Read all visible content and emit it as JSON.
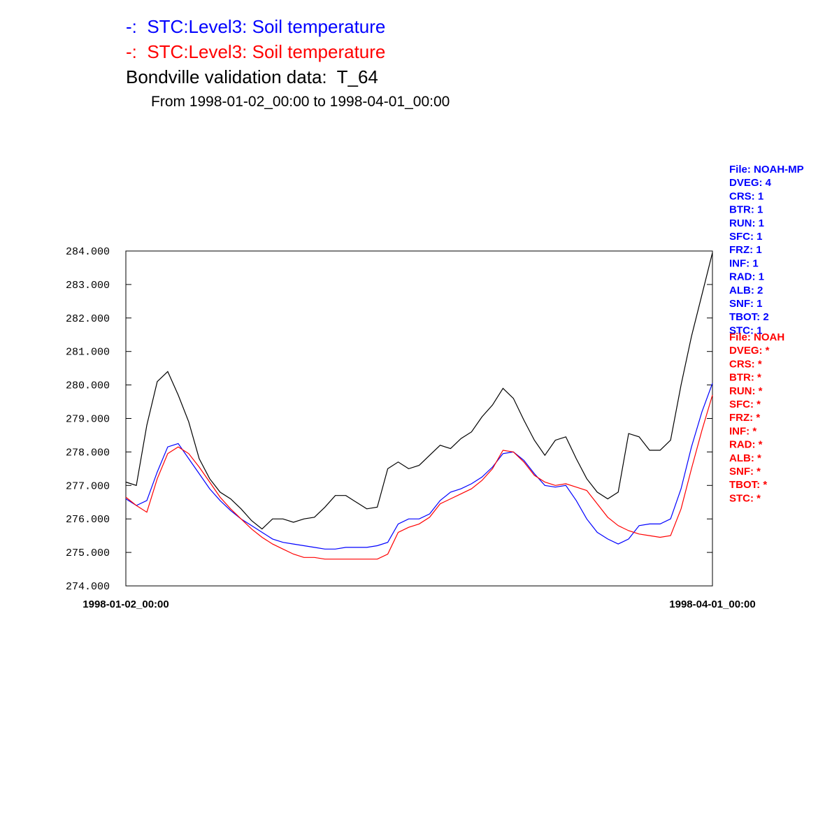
{
  "chart_data": {
    "type": "line",
    "subtitle": "From 1998-01-02_00:00 to 1998-04-01_00:00",
    "categories": [
      "1998-01-02_00:00",
      null,
      null,
      null,
      null,
      null,
      null,
      null,
      null,
      null,
      null,
      null,
      null,
      null,
      null,
      null,
      null,
      null,
      null,
      null,
      null,
      null,
      null,
      null,
      null,
      null,
      null,
      null,
      null,
      null,
      null,
      null,
      null,
      null,
      null,
      null,
      null,
      null,
      null,
      null,
      null,
      null,
      null,
      null,
      null,
      null,
      null,
      null,
      null,
      null,
      null,
      null,
      null,
      null,
      null,
      null,
      "1998-04-01_00:00"
    ],
    "series": [
      {
        "name": "-:  STC:Level3: Soil temperature",
        "color": "#0000ff",
        "values": [
          276.6,
          276.4,
          276.55,
          277.4,
          278.15,
          278.25,
          277.8,
          277.35,
          276.9,
          276.55,
          276.25,
          276.0,
          275.8,
          275.6,
          275.4,
          275.3,
          275.25,
          275.2,
          275.15,
          275.1,
          275.1,
          275.15,
          275.15,
          275.15,
          275.2,
          275.3,
          275.85,
          276.0,
          276.0,
          276.15,
          276.55,
          276.8,
          276.9,
          277.05,
          277.25,
          277.55,
          277.95,
          278.0,
          277.75,
          277.35,
          277.0,
          276.95,
          277.0,
          276.55,
          276.0,
          275.6,
          275.4,
          275.25,
          275.4,
          275.8,
          275.85,
          275.85,
          276.0,
          276.9,
          278.15,
          279.2,
          280.05
        ]
      },
      {
        "name": "-:  STC:Level3: Soil temperature",
        "color": "#ff0000",
        "values": [
          276.65,
          276.4,
          276.2,
          277.2,
          277.95,
          278.15,
          277.95,
          277.55,
          277.1,
          276.65,
          276.3,
          276.0,
          275.7,
          275.45,
          275.25,
          275.1,
          274.95,
          274.85,
          274.85,
          274.8,
          274.8,
          274.8,
          274.8,
          274.8,
          274.8,
          274.95,
          275.6,
          275.75,
          275.85,
          276.05,
          276.45,
          276.6,
          276.75,
          276.9,
          277.15,
          277.5,
          278.05,
          278.0,
          277.7,
          277.3,
          277.1,
          277.0,
          277.05,
          276.95,
          276.85,
          276.45,
          276.05,
          275.8,
          275.65,
          275.55,
          275.5,
          275.45,
          275.5,
          276.3,
          277.5,
          278.65,
          279.7
        ]
      },
      {
        "name": "Bondville validation data:  T_64",
        "color": "#000000",
        "values": [
          277.1,
          277.0,
          278.8,
          280.1,
          280.4,
          279.7,
          278.9,
          277.8,
          277.2,
          276.8,
          276.6,
          276.3,
          275.95,
          275.7,
          276.0,
          276.0,
          275.9,
          276.0,
          276.05,
          276.35,
          276.7,
          276.7,
          276.5,
          276.3,
          276.35,
          277.5,
          277.7,
          277.5,
          277.6,
          277.9,
          278.2,
          278.1,
          278.4,
          278.6,
          279.05,
          279.4,
          279.9,
          279.6,
          278.95,
          278.35,
          277.9,
          278.35,
          278.45,
          277.8,
          277.2,
          276.8,
          276.6,
          276.8,
          278.55,
          278.45,
          278.05,
          278.05,
          278.35,
          280.0,
          281.45,
          282.7,
          283.95
        ]
      }
    ],
    "ylim": [
      274,
      284
    ],
    "yticks": [
      {
        "value": 274,
        "label": "274.000"
      },
      {
        "value": 275,
        "label": "275.000"
      },
      {
        "value": 276,
        "label": "276.000"
      },
      {
        "value": 277,
        "label": "277.000"
      },
      {
        "value": 278,
        "label": "278.000"
      },
      {
        "value": 279,
        "label": "279.000"
      },
      {
        "value": 280,
        "label": "280.000"
      },
      {
        "value": 281,
        "label": "281.000"
      },
      {
        "value": 282,
        "label": "282.000"
      },
      {
        "value": 283,
        "label": "283.000"
      },
      {
        "value": 284,
        "label": "284.000"
      }
    ],
    "annotations": [
      {
        "color": "#0000ff",
        "lines": [
          "File: NOAH-MP",
          "DVEG: 4",
          "CRS: 1",
          "BTR: 1",
          "RUN: 1",
          "SFC: 1",
          "FRZ: 1",
          "INF: 1",
          "RAD: 1",
          "ALB: 2",
          "SNF: 1",
          "TBOT: 2",
          "STC: 1"
        ]
      },
      {
        "color": "#ff0000",
        "lines": [
          "File: NOAH",
          "DVEG: *",
          "CRS: *",
          "BTR: *",
          "RUN: *",
          "SFC: *",
          "FRZ: *",
          "INF: *",
          "RAD: *",
          "ALB: *",
          "SNF: *",
          "TBOT: *",
          "STC: *"
        ]
      }
    ]
  }
}
